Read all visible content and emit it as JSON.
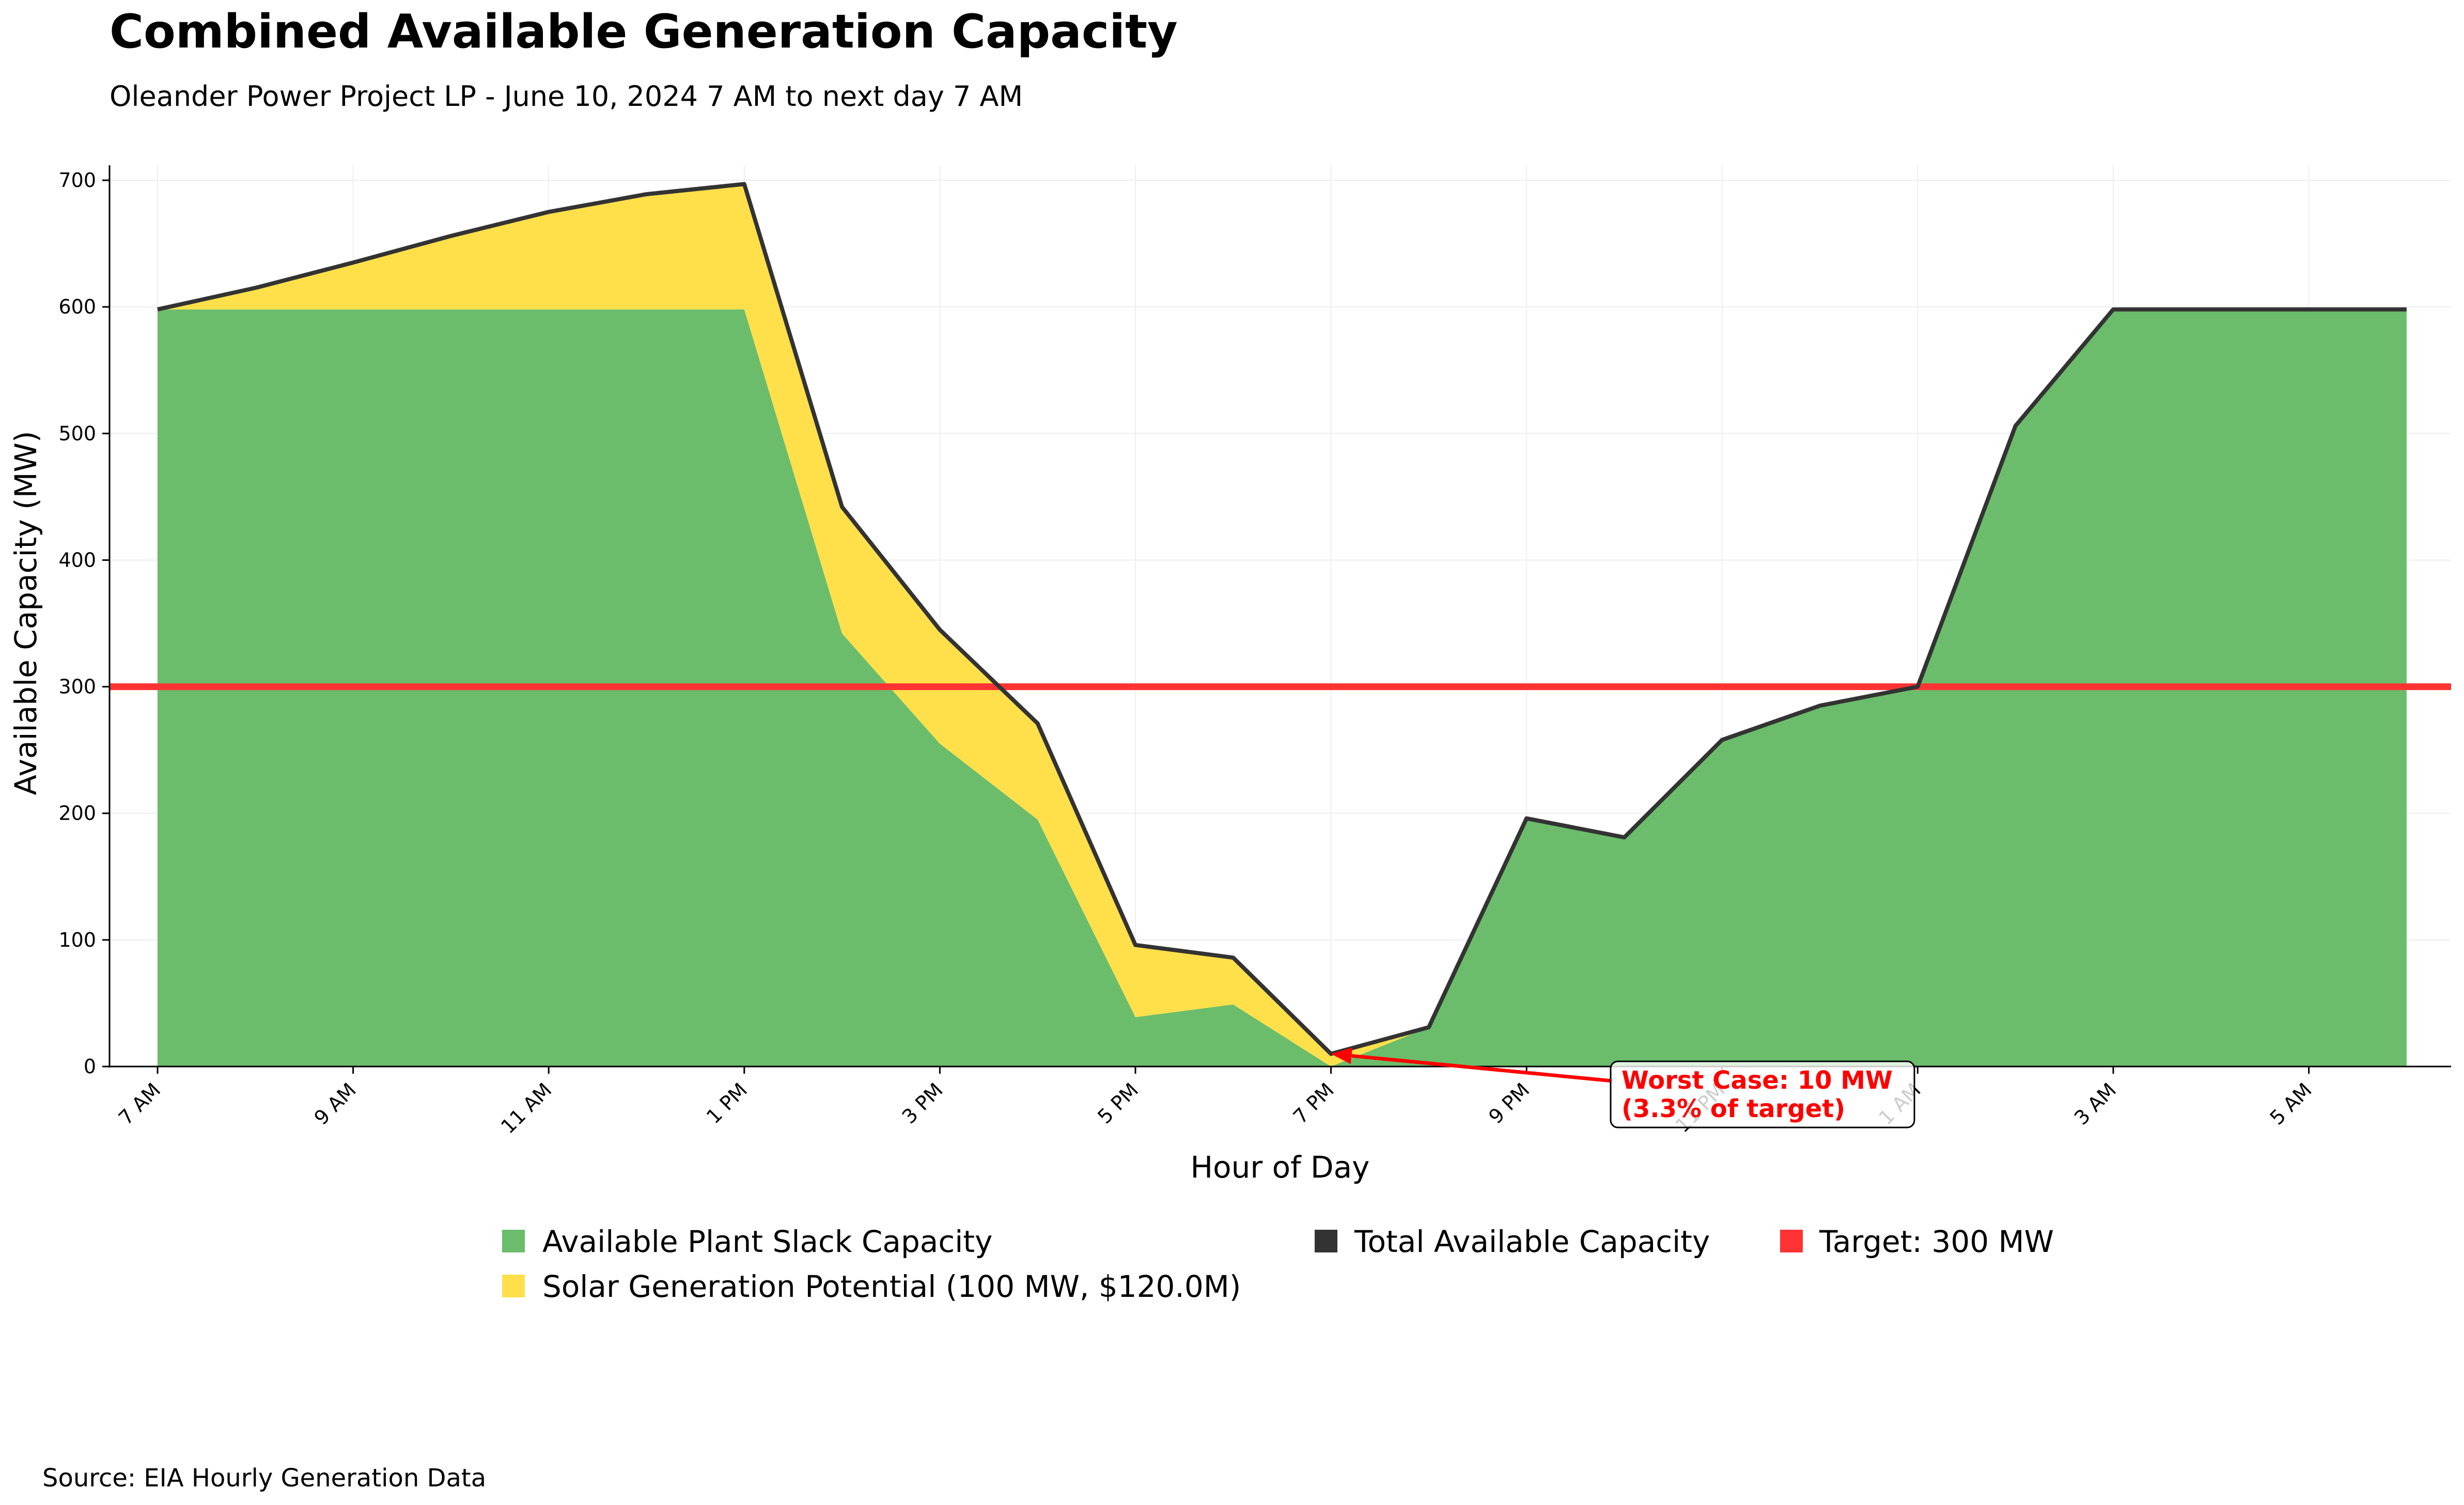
{
  "chart_data": {
    "type": "area",
    "title": "Combined Available Generation Capacity",
    "subtitle": "Oleander Power Project LP - June 10, 2024 7 AM to next day 7 AM",
    "xlabel": "Hour of Day",
    "ylabel": "Available Capacity (MW)",
    "ylim": [
      0,
      710
    ],
    "yticks": [
      0,
      100,
      200,
      300,
      400,
      500,
      600,
      700
    ],
    "x": [
      "7 AM",
      "8 AM",
      "9 AM",
      "10 AM",
      "11 AM",
      "12 PM",
      "1 PM",
      "2 PM",
      "3 PM",
      "4 PM",
      "5 PM",
      "6 PM",
      "7 PM",
      "8 PM",
      "9 PM",
      "10 PM",
      "11 PM",
      "12 AM",
      "1 AM",
      "2 AM",
      "3 AM",
      "4 AM",
      "5 AM",
      "6 AM"
    ],
    "xtick_labels": [
      "7 AM",
      "9 AM",
      "11 AM",
      "1 PM",
      "3 PM",
      "5 PM",
      "7 PM",
      "9 PM",
      "11 PM",
      "1 AM",
      "3 AM",
      "5 AM"
    ],
    "series": [
      {
        "name": "Available Plant Slack Capacity",
        "color": "#6bbd6b",
        "values": [
          598,
          598,
          598,
          598,
          598,
          598,
          598,
          342,
          255,
          195,
          39,
          49,
          0,
          31,
          196,
          181,
          258,
          285,
          300,
          506,
          598,
          598,
          598,
          598
        ]
      },
      {
        "name": "Solar Generation Potential (100 MW, $120.0M)",
        "color": "#ffe04b",
        "values": [
          0,
          17,
          37,
          58,
          77,
          91,
          99,
          100,
          90,
          76,
          57,
          37,
          10,
          0,
          0,
          0,
          0,
          0,
          0,
          0,
          0,
          0,
          0,
          0
        ]
      },
      {
        "name": "Total Available Capacity",
        "color": "#333333",
        "values": [
          598,
          615,
          635,
          656,
          675,
          689,
          697,
          442,
          345,
          271,
          96,
          86,
          10,
          31,
          196,
          181,
          258,
          285,
          300,
          506,
          598,
          598,
          598,
          598
        ]
      }
    ],
    "target": {
      "name": "Target: 300 MW",
      "value": 300,
      "color": "#ff3333"
    },
    "annotation": {
      "line1": "Worst Case: 10 MW",
      "line2": "(3.3% of target)",
      "point_x": "7 PM",
      "point_y": 10
    },
    "legend_position": "bottom-center",
    "grid": true,
    "source": "Source: EIA Hourly Generation Data"
  }
}
